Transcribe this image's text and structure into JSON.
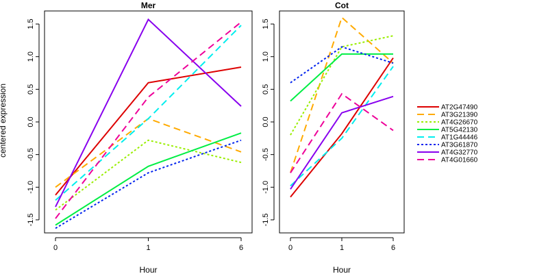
{
  "chart_data": {
    "type": "line",
    "ylabel": "centered expression",
    "xlabel": "Hour",
    "x_ticks": [
      "0",
      "1",
      "6"
    ],
    "ylim": [
      -1.7,
      1.7
    ],
    "y_ticks": [
      -1.5,
      -1.0,
      -0.5,
      0.0,
      0.5,
      1.0,
      1.5
    ],
    "y_tick_labels": [
      "-1.5",
      "-1.0",
      "-0.5",
      "0.0",
      "0.5",
      "1.0",
      "1.5"
    ],
    "grid": false,
    "legend_position": "right",
    "legend": [
      {
        "name": "AT2G47490",
        "color": "#dd0000",
        "dash": "solid"
      },
      {
        "name": "AT3G21390",
        "color": "#ffaa00",
        "dash": "longdash"
      },
      {
        "name": "AT4G26670",
        "color": "#99ee00",
        "dash": "dotted"
      },
      {
        "name": "AT5G42130",
        "color": "#00ee44",
        "dash": "solid"
      },
      {
        "name": "AT1G44446",
        "color": "#00eeee",
        "dash": "longdash"
      },
      {
        "name": "AT3G61870",
        "color": "#0022ee",
        "dash": "dotted"
      },
      {
        "name": "AT4G32770",
        "color": "#8800ee",
        "dash": "solid"
      },
      {
        "name": "AT4G01660",
        "color": "#ee0099",
        "dash": "longdash"
      }
    ],
    "panels": [
      {
        "title": "Mer",
        "series": [
          {
            "values": [
              -1.12,
              0.6,
              0.84
            ]
          },
          {
            "values": [
              -1.0,
              0.05,
              -0.46
            ]
          },
          {
            "values": [
              -1.35,
              -0.28,
              -0.62
            ]
          },
          {
            "values": [
              -1.58,
              -0.68,
              -0.17
            ]
          },
          {
            "values": [
              -1.2,
              0.05,
              1.48
            ]
          },
          {
            "values": [
              -1.63,
              -0.78,
              -0.28
            ]
          },
          {
            "values": [
              -1.3,
              1.57,
              0.24
            ]
          },
          {
            "values": [
              -1.48,
              0.38,
              1.53
            ]
          }
        ]
      },
      {
        "title": "Cot",
        "series": [
          {
            "values": [
              -1.15,
              -0.18,
              0.98
            ]
          },
          {
            "values": [
              -0.78,
              1.6,
              0.9
            ]
          },
          {
            "values": [
              -0.2,
              1.15,
              1.32
            ]
          },
          {
            "values": [
              0.32,
              1.04,
              1.04
            ]
          },
          {
            "values": [
              -0.98,
              -0.25,
              0.85
            ]
          },
          {
            "values": [
              0.6,
              1.15,
              0.9
            ]
          },
          {
            "values": [
              -1.03,
              0.14,
              0.39
            ]
          },
          {
            "values": [
              -0.78,
              0.43,
              -0.13
            ]
          }
        ]
      }
    ]
  }
}
